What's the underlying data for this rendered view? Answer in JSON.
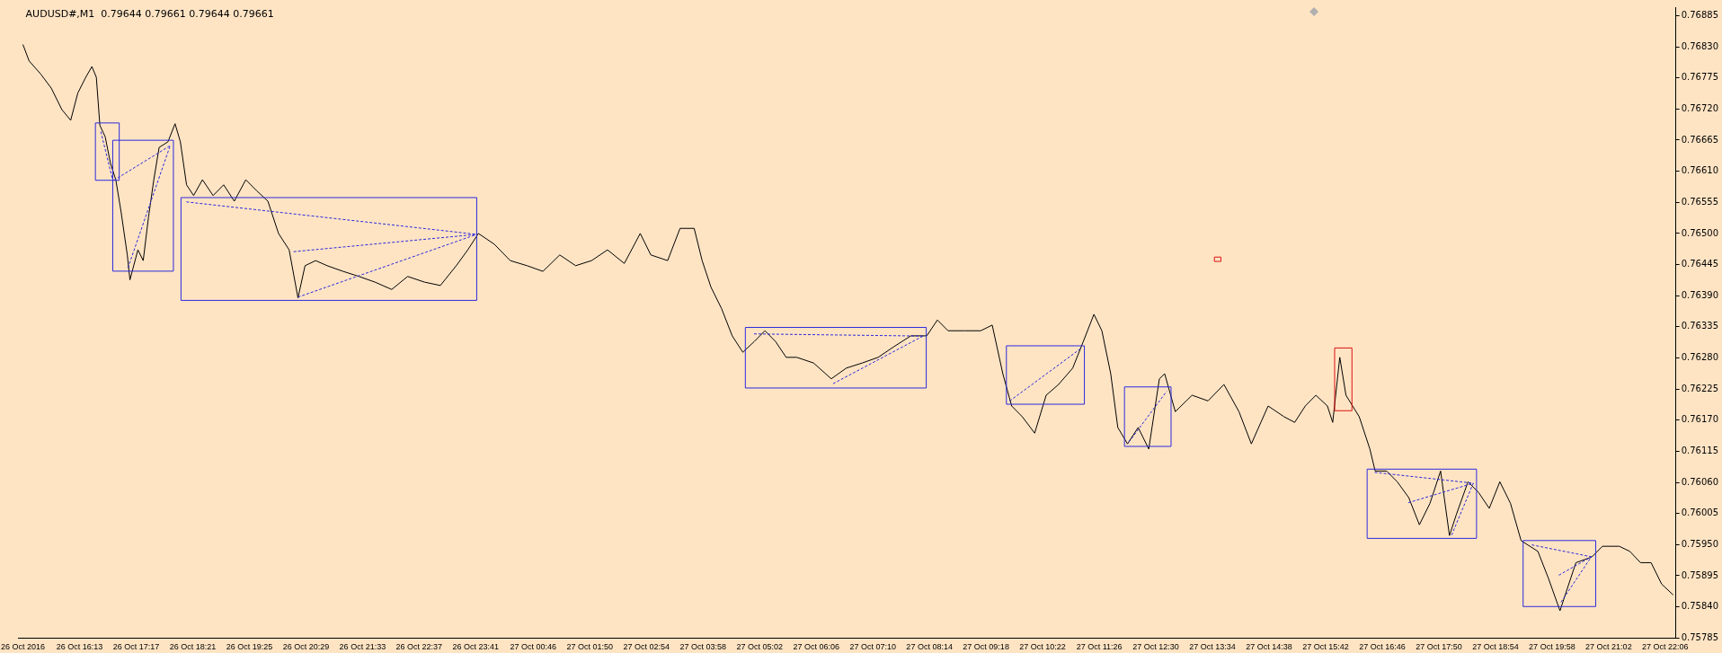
{
  "chart_data": {
    "type": "line",
    "title": "AUDUSD#,M1  0.79644 0.79661 0.79644 0.79661",
    "color": "#000000",
    "marker": "none",
    "line_style": "solid",
    "legend": false,
    "grid": false,
    "x": [
      "2016-10-26T15:09",
      "2016-10-26T15:16",
      "2016-10-26T15:29",
      "2016-10-26T15:41",
      "2016-10-26T15:53",
      "2016-10-26T16:03",
      "2016-10-26T16:11",
      "2016-10-26T16:20",
      "2016-10-26T16:27",
      "2016-10-26T16:32",
      "2016-10-26T16:36",
      "2016-10-26T16:42",
      "2016-10-26T16:48",
      "2016-10-26T16:54",
      "2016-10-26T17:00",
      "2016-10-26T17:07",
      "2016-10-26T17:10",
      "2016-10-26T17:19",
      "2016-10-26T17:25",
      "2016-10-26T17:31",
      "2016-10-26T17:37",
      "2016-10-26T17:43",
      "2016-10-26T17:53",
      "2016-10-26T18:01",
      "2016-10-26T18:07",
      "2016-10-26T18:14",
      "2016-10-26T18:22",
      "2016-10-26T18:32",
      "2016-10-26T18:44",
      "2016-10-26T18:56",
      "2016-10-26T19:08",
      "2016-10-26T19:21",
      "2016-10-26T19:33",
      "2016-10-26T19:46",
      "2016-10-26T19:58",
      "2016-10-26T20:10",
      "2016-10-26T20:20",
      "2016-10-26T20:28",
      "2016-10-26T20:40",
      "2016-10-26T20:53",
      "2016-10-26T21:11",
      "2016-10-26T21:29",
      "2016-10-26T21:47",
      "2016-10-26T22:06",
      "2016-10-26T22:24",
      "2016-10-26T22:43",
      "2016-10-26T23:01",
      "2016-10-26T23:19",
      "2016-10-26T23:32",
      "2016-10-26T23:44",
      "2016-10-27T00:02",
      "2016-10-27T00:20",
      "2016-10-27T00:39",
      "2016-10-27T00:57",
      "2016-10-27T01:16",
      "2016-10-27T01:34",
      "2016-10-27T01:52",
      "2016-10-27T02:10",
      "2016-10-27T02:29",
      "2016-10-27T02:47",
      "2016-10-27T02:59",
      "2016-10-27T03:18",
      "2016-10-27T03:32",
      "2016-10-27T03:48",
      "2016-10-27T03:57",
      "2016-10-27T04:07",
      "2016-10-27T04:19",
      "2016-10-27T04:31",
      "2016-10-27T04:43",
      "2016-10-27T04:56",
      "2016-10-27T05:08",
      "2016-10-27T05:20",
      "2016-10-27T05:32",
      "2016-10-27T05:44",
      "2016-10-27T06:03",
      "2016-10-27T06:23",
      "2016-10-27T06:40",
      "2016-10-27T06:58",
      "2016-10-27T07:16",
      "2016-10-27T07:34",
      "2016-10-27T07:53",
      "2016-10-27T08:11",
      "2016-10-27T08:23",
      "2016-10-27T08:35",
      "2016-10-27T08:54",
      "2016-10-27T09:12",
      "2016-10-27T09:25",
      "2016-10-27T09:37",
      "2016-10-27T09:47",
      "2016-10-27T09:59",
      "2016-10-27T10:13",
      "2016-10-27T10:26",
      "2016-10-27T10:40",
      "2016-10-27T10:56",
      "2016-10-27T11:08",
      "2016-10-27T11:20",
      "2016-10-27T11:29",
      "2016-10-27T11:39",
      "2016-10-27T11:47",
      "2016-10-27T11:58",
      "2016-10-27T12:10",
      "2016-10-27T12:22",
      "2016-10-27T12:34",
      "2016-10-27T12:40",
      "2016-10-27T12:52",
      "2016-10-27T13:11",
      "2016-10-27T13:29",
      "2016-10-27T13:47",
      "2016-10-27T14:04",
      "2016-10-27T14:18",
      "2016-10-27T14:37",
      "2016-10-27T14:55",
      "2016-10-27T15:07",
      "2016-10-27T15:19",
      "2016-10-27T15:31",
      "2016-10-27T15:44",
      "2016-10-27T15:50",
      "2016-10-27T15:58",
      "2016-10-27T16:05",
      "2016-10-27T16:20",
      "2016-10-27T16:32",
      "2016-10-27T16:38",
      "2016-10-27T16:51",
      "2016-10-27T17:03",
      "2016-10-27T17:16",
      "2016-10-27T17:28",
      "2016-10-27T17:40",
      "2016-10-27T17:52",
      "2016-10-27T18:02",
      "2016-10-27T18:10",
      "2016-10-27T18:23",
      "2016-10-27T18:35",
      "2016-10-27T18:47",
      "2016-10-27T18:59",
      "2016-10-27T19:11",
      "2016-10-27T19:23",
      "2016-10-27T19:42",
      "2016-10-27T19:54",
      "2016-10-27T20:07",
      "2016-10-27T20:15",
      "2016-10-27T20:25",
      "2016-10-27T20:43",
      "2016-10-27T20:55",
      "2016-10-27T21:14",
      "2016-10-27T21:26",
      "2016-10-27T21:38",
      "2016-10-27T21:50",
      "2016-10-27T22:02",
      "2016-10-27T22:15"
    ],
    "values": [
      0.76834,
      0.76805,
      0.76782,
      0.76757,
      0.76719,
      0.767,
      0.76748,
      0.76776,
      0.76795,
      0.76776,
      0.76691,
      0.76671,
      0.76624,
      0.76595,
      0.76538,
      0.76462,
      0.76418,
      0.76471,
      0.76452,
      0.76529,
      0.76595,
      0.76652,
      0.76662,
      0.76694,
      0.76662,
      0.76586,
      0.76567,
      0.76595,
      0.76567,
      0.76586,
      0.76557,
      0.76595,
      0.76576,
      0.76557,
      0.765,
      0.76471,
      0.76386,
      0.76443,
      0.76452,
      0.76443,
      0.76433,
      0.76424,
      0.76414,
      0.76401,
      0.76424,
      0.76414,
      0.76408,
      0.76443,
      0.76471,
      0.765,
      0.76481,
      0.76452,
      0.76443,
      0.76433,
      0.76462,
      0.76443,
      0.76452,
      0.76471,
      0.76447,
      0.765,
      0.76462,
      0.76452,
      0.76509,
      0.76509,
      0.76452,
      0.76405,
      0.76367,
      0.76319,
      0.7629,
      0.76309,
      0.76328,
      0.76309,
      0.76281,
      0.76281,
      0.76271,
      0.76243,
      0.76262,
      0.76271,
      0.76281,
      0.763,
      0.76319,
      0.76319,
      0.76347,
      0.76328,
      0.76328,
      0.76328,
      0.76338,
      0.76252,
      0.76195,
      0.76176,
      0.76147,
      0.76214,
      0.76233,
      0.76262,
      0.76309,
      0.76357,
      0.76328,
      0.76252,
      0.76157,
      0.76128,
      0.76157,
      0.76119,
      0.76243,
      0.76252,
      0.76185,
      0.76214,
      0.76204,
      0.76233,
      0.76185,
      0.76128,
      0.76195,
      0.76176,
      0.76166,
      0.76195,
      0.76214,
      0.76195,
      0.76166,
      0.76281,
      0.76214,
      0.76176,
      0.76119,
      0.7608,
      0.7608,
      0.76061,
      0.76033,
      0.75985,
      0.76023,
      0.7608,
      0.75966,
      0.76004,
      0.76061,
      0.76042,
      0.76014,
      0.76061,
      0.76023,
      0.75957,
      0.75938,
      0.7589,
      0.75833,
      0.75871,
      0.75918,
      0.75928,
      0.75947,
      0.75947,
      0.75938,
      0.75918,
      0.75918,
      0.7588,
      0.75861
    ],
    "xlim": [
      "2016-10-26T15:04",
      "2016-10-27T22:18"
    ],
    "ylim": [
      0.75785,
      0.769
    ],
    "xticks": [
      {
        "value": "2016-10-26T15:09",
        "label": "26 Oct 2016"
      },
      {
        "value": "2016-10-26T16:13",
        "label": "26 Oct 16:13"
      },
      {
        "value": "2016-10-26T17:17",
        "label": "26 Oct 17:17"
      },
      {
        "value": "2016-10-26T18:21",
        "label": "26 Oct 18:21"
      },
      {
        "value": "2016-10-26T19:25",
        "label": "26 Oct 19:25"
      },
      {
        "value": "2016-10-26T20:29",
        "label": "26 Oct 20:29"
      },
      {
        "value": "2016-10-26T21:33",
        "label": "26 Oct 21:33"
      },
      {
        "value": "2016-10-26T22:37",
        "label": "26 Oct 22:37"
      },
      {
        "value": "2016-10-26T23:41",
        "label": "26 Oct 23:41"
      },
      {
        "value": "2016-10-27T00:46",
        "label": "27 Oct 00:46"
      },
      {
        "value": "2016-10-27T01:50",
        "label": "27 Oct 01:50"
      },
      {
        "value": "2016-10-27T02:54",
        "label": "27 Oct 02:54"
      },
      {
        "value": "2016-10-27T03:58",
        "label": "27 Oct 03:58"
      },
      {
        "value": "2016-10-27T05:02",
        "label": "27 Oct 05:02"
      },
      {
        "value": "2016-10-27T06:06",
        "label": "27 Oct 06:06"
      },
      {
        "value": "2016-10-27T07:10",
        "label": "27 Oct 07:10"
      },
      {
        "value": "2016-10-27T08:14",
        "label": "27 Oct 08:14"
      },
      {
        "value": "2016-10-27T09:18",
        "label": "27 Oct 09:18"
      },
      {
        "value": "2016-10-27T10:22",
        "label": "27 Oct 10:22"
      },
      {
        "value": "2016-10-27T11:26",
        "label": "27 Oct 11:26"
      },
      {
        "value": "2016-10-27T12:30",
        "label": "27 Oct 12:30"
      },
      {
        "value": "2016-10-27T13:34",
        "label": "27 Oct 13:34"
      },
      {
        "value": "2016-10-27T14:38",
        "label": "27 Oct 14:38"
      },
      {
        "value": "2016-10-27T15:42",
        "label": "27 Oct 15:42"
      },
      {
        "value": "2016-10-27T16:46",
        "label": "27 Oct 16:46"
      },
      {
        "value": "2016-10-27T17:50",
        "label": "27 Oct 17:50"
      },
      {
        "value": "2016-10-27T18:54",
        "label": "27 Oct 18:54"
      },
      {
        "value": "2016-10-27T19:58",
        "label": "27 Oct 19:58"
      },
      {
        "value": "2016-10-27T21:02",
        "label": "27 Oct 21:02"
      },
      {
        "value": "2016-10-27T22:06",
        "label": "27 Oct 22:06"
      }
    ],
    "yticks": [
      0.75785,
      {
        "value": 0.7584,
        "label": "0.75840"
      },
      0.75895,
      {
        "value": 0.7595,
        "label": "0.75950"
      },
      0.76005,
      {
        "value": 0.7606,
        "label": "0.76060"
      },
      0.76115,
      {
        "value": 0.7617,
        "label": "0.76170"
      },
      0.76225,
      {
        "value": 0.7628,
        "label": "0.76280"
      },
      0.76335,
      {
        "value": 0.7639,
        "label": "0.76390"
      },
      0.76445,
      {
        "value": 0.765,
        "label": "0.76500"
      },
      0.76555,
      {
        "value": 0.7661,
        "label": "0.76610"
      },
      0.76665,
      {
        "value": 0.7672,
        "label": "0.76720"
      },
      0.76775,
      {
        "value": 0.7683,
        "label": "0.76830"
      },
      0.76885
    ]
  }
}
